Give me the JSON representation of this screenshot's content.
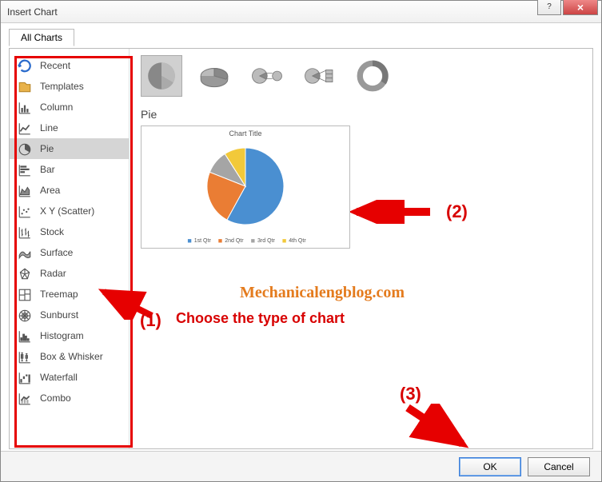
{
  "dialog": {
    "title": "Insert Chart",
    "tab": "All Charts"
  },
  "sidebar": {
    "items": [
      {
        "label": "Recent",
        "icon": "recent"
      },
      {
        "label": "Templates",
        "icon": "templates"
      },
      {
        "label": "Column",
        "icon": "column"
      },
      {
        "label": "Line",
        "icon": "line"
      },
      {
        "label": "Pie",
        "icon": "pie",
        "selected": true
      },
      {
        "label": "Bar",
        "icon": "bar"
      },
      {
        "label": "Area",
        "icon": "area"
      },
      {
        "label": "X Y (Scatter)",
        "icon": "scatter"
      },
      {
        "label": "Stock",
        "icon": "stock"
      },
      {
        "label": "Surface",
        "icon": "surface"
      },
      {
        "label": "Radar",
        "icon": "radar"
      },
      {
        "label": "Treemap",
        "icon": "treemap"
      },
      {
        "label": "Sunburst",
        "icon": "sunburst"
      },
      {
        "label": "Histogram",
        "icon": "histogram"
      },
      {
        "label": "Box & Whisker",
        "icon": "boxwhisker"
      },
      {
        "label": "Waterfall",
        "icon": "waterfall"
      },
      {
        "label": "Combo",
        "icon": "combo"
      }
    ]
  },
  "subtypes": [
    {
      "kind": "pie",
      "selected": true
    },
    {
      "kind": "pie3d"
    },
    {
      "kind": "pieofpie"
    },
    {
      "kind": "barofpie"
    },
    {
      "kind": "doughnut"
    }
  ],
  "chart_label": "Pie",
  "preview": {
    "title": "Chart Title",
    "type": "pie",
    "slices": [
      {
        "label": "1st Qtr",
        "value": 58,
        "color": "#4a8fd1"
      },
      {
        "label": "2nd Qtr",
        "value": 23,
        "color": "#ea7d34"
      },
      {
        "label": "3rd Qtr",
        "value": 10,
        "color": "#a5a5a5"
      },
      {
        "label": "4th Qtr",
        "value": 9,
        "color": "#f2c93a"
      }
    ],
    "background": "#ffffff"
  },
  "buttons": {
    "ok": "OK",
    "cancel": "Cancel"
  },
  "annotations": {
    "choose": "Choose the type of chart",
    "n1": "(1)",
    "n2": "(2)",
    "n3": "(3)",
    "watermark": "Mechanicalengblog.com"
  }
}
